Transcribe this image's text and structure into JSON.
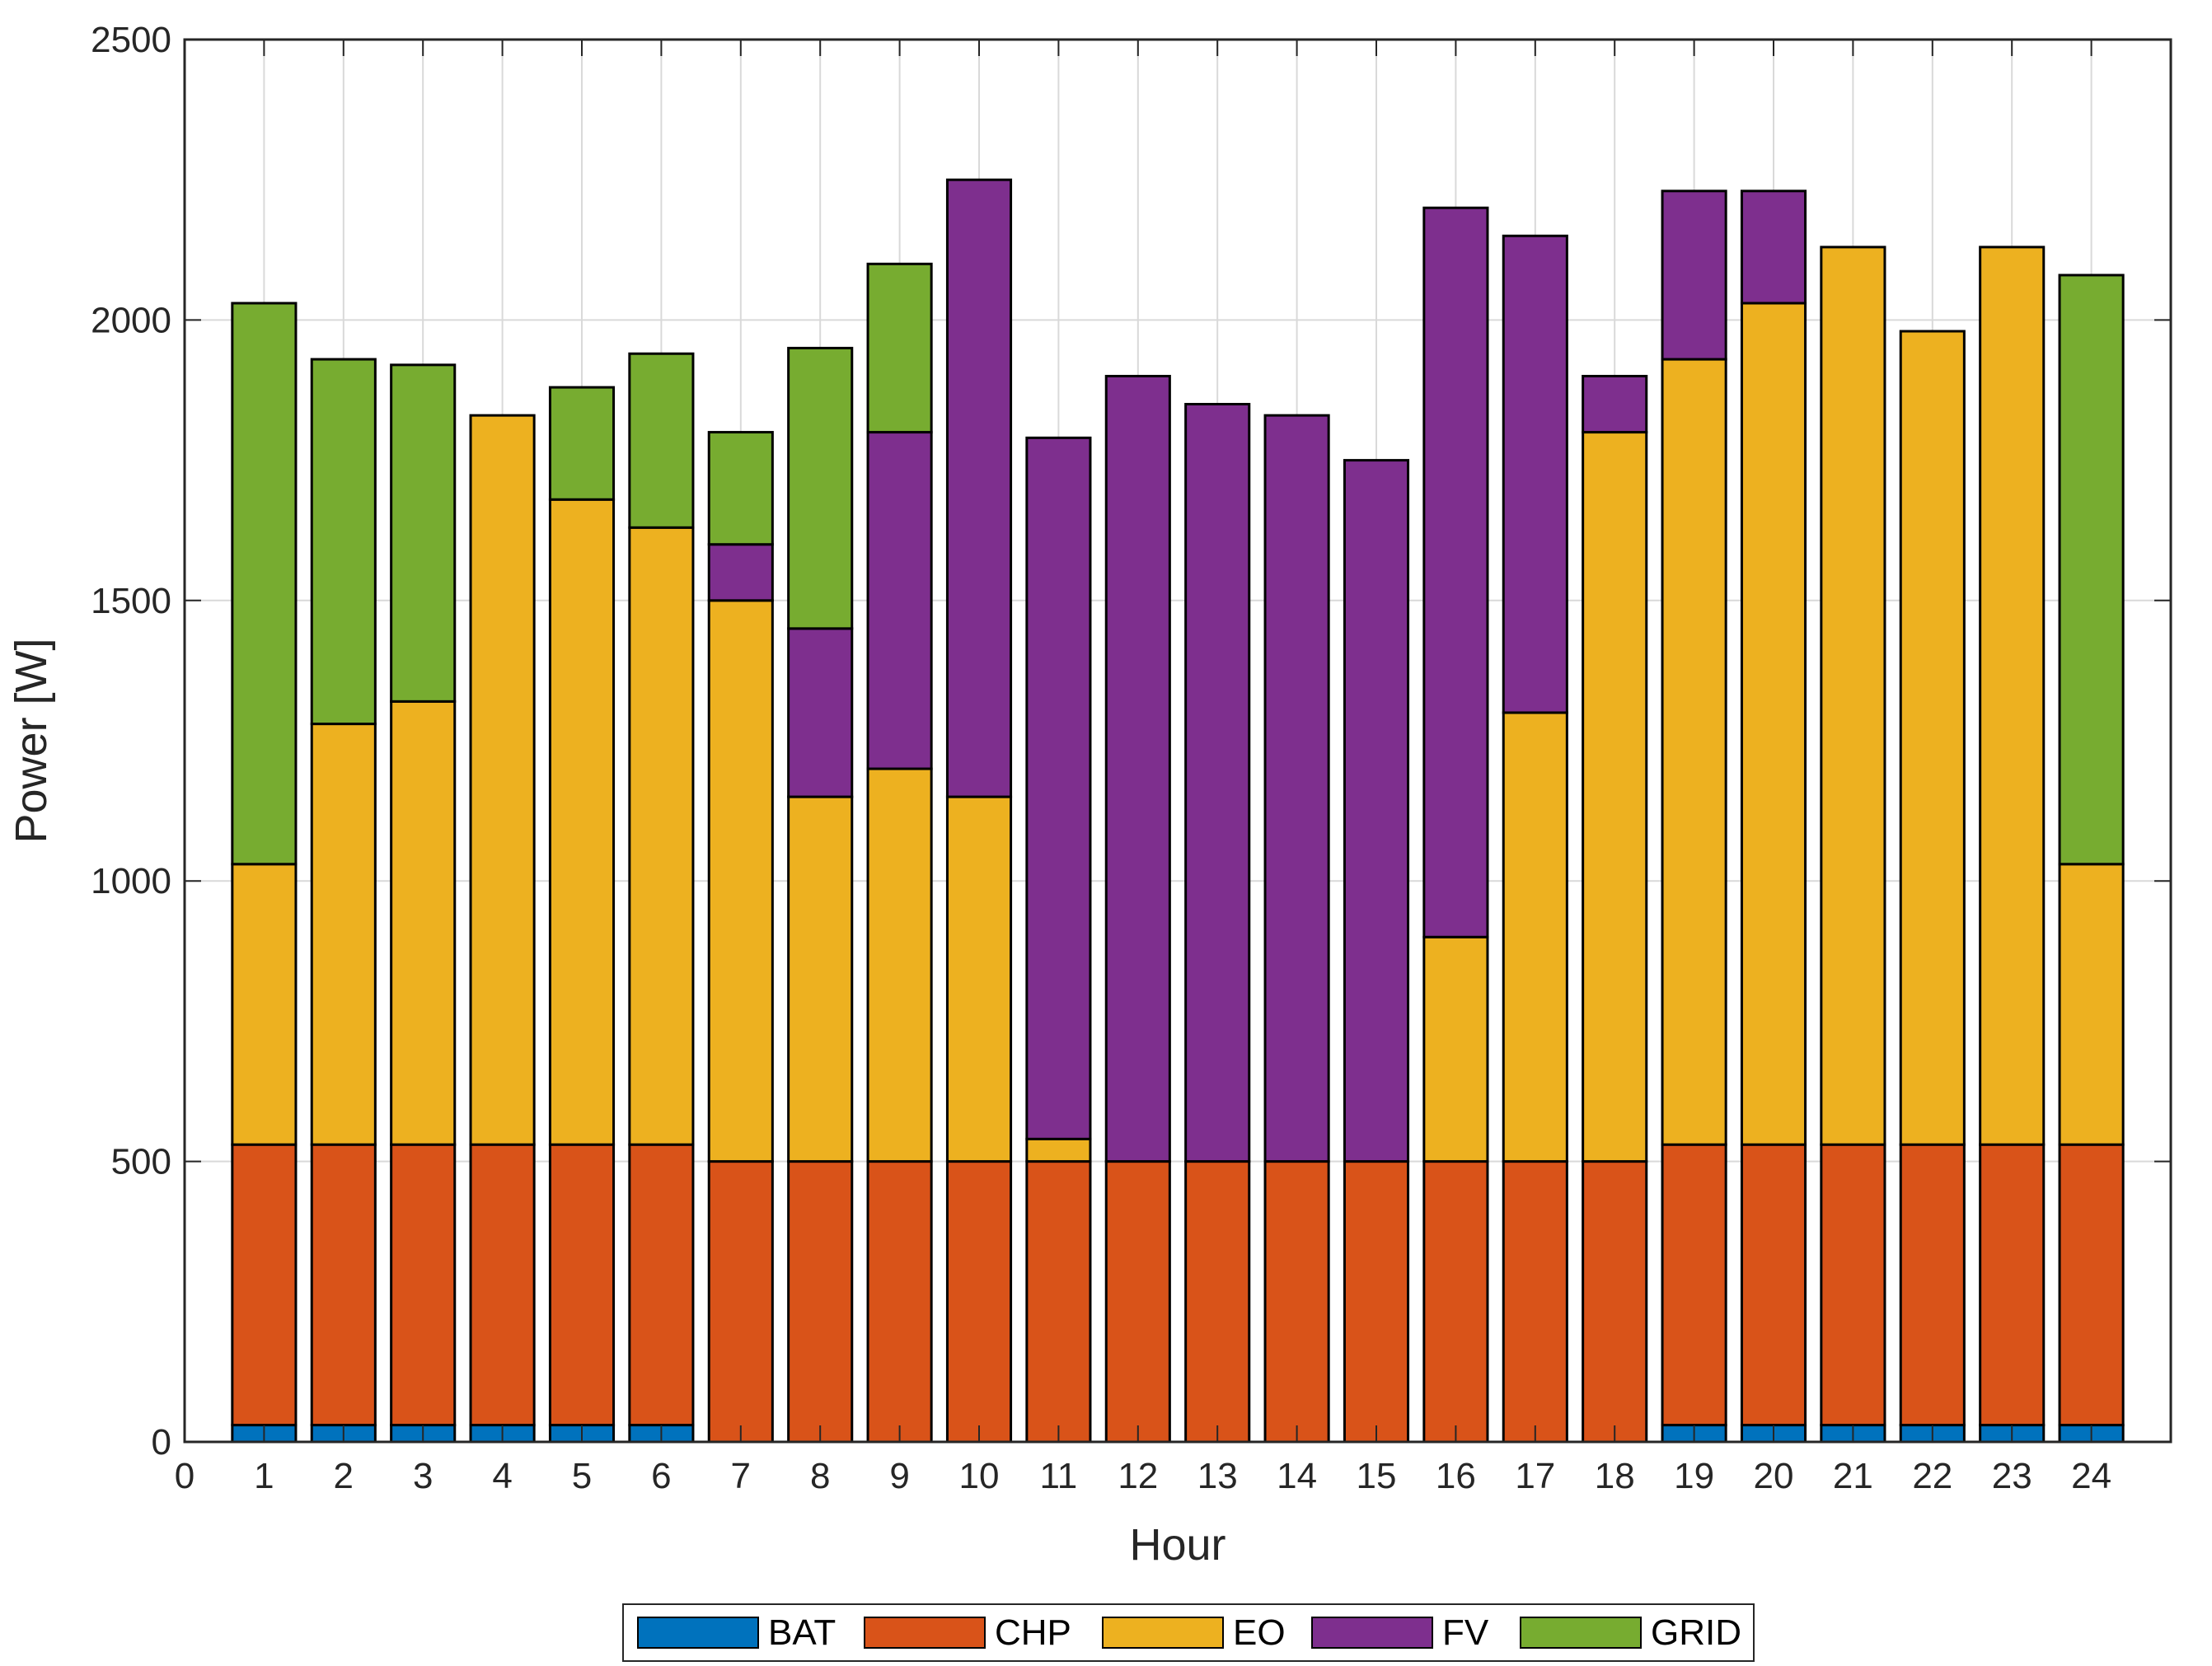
{
  "chart_data": {
    "type": "bar",
    "stacked": true,
    "title": "",
    "xlabel": "Hour",
    "ylabel": "Power [W]",
    "xlim": [
      0,
      25
    ],
    "ylim": [
      0,
      2500
    ],
    "xticks": [
      0,
      1,
      2,
      3,
      4,
      5,
      6,
      7,
      8,
      9,
      10,
      11,
      12,
      13,
      14,
      15,
      16,
      17,
      18,
      19,
      20,
      21,
      22,
      23,
      24
    ],
    "yticks": [
      0,
      500,
      1000,
      1500,
      2000,
      2500
    ],
    "grid": true,
    "legend_position": "bottom",
    "categories": [
      1,
      2,
      3,
      4,
      5,
      6,
      7,
      8,
      9,
      10,
      11,
      12,
      13,
      14,
      15,
      16,
      17,
      18,
      19,
      20,
      21,
      22,
      23,
      24
    ],
    "series": [
      {
        "name": "BAT",
        "color": "#0072BD",
        "values": [
          30,
          30,
          30,
          30,
          30,
          30,
          0,
          0,
          0,
          0,
          0,
          0,
          0,
          0,
          0,
          0,
          0,
          0,
          30,
          30,
          30,
          30,
          30,
          30
        ]
      },
      {
        "name": "CHP",
        "color": "#D95319",
        "values": [
          500,
          500,
          500,
          500,
          500,
          500,
          500,
          500,
          500,
          500,
          500,
          500,
          500,
          500,
          500,
          500,
          500,
          500,
          500,
          500,
          500,
          500,
          500,
          500
        ]
      },
      {
        "name": "EO",
        "color": "#EDB120",
        "values": [
          500,
          750,
          790,
          1300,
          1150,
          1100,
          1000,
          650,
          700,
          650,
          40,
          0,
          0,
          0,
          0,
          400,
          800,
          1300,
          1400,
          1500,
          1600,
          1450,
          1600,
          500
        ]
      },
      {
        "name": "FV",
        "color": "#7E2F8E",
        "values": [
          0,
          0,
          0,
          0,
          0,
          0,
          100,
          300,
          600,
          1100,
          1250,
          1400,
          1350,
          1330,
          1250,
          1300,
          850,
          100,
          300,
          200,
          0,
          0,
          0,
          0
        ]
      },
      {
        "name": "GRID",
        "color": "#77AC30",
        "values": [
          1000,
          650,
          600,
          0,
          200,
          310,
          200,
          500,
          300,
          0,
          0,
          0,
          0,
          0,
          0,
          0,
          0,
          0,
          0,
          0,
          0,
          0,
          0,
          1050
        ]
      }
    ]
  }
}
